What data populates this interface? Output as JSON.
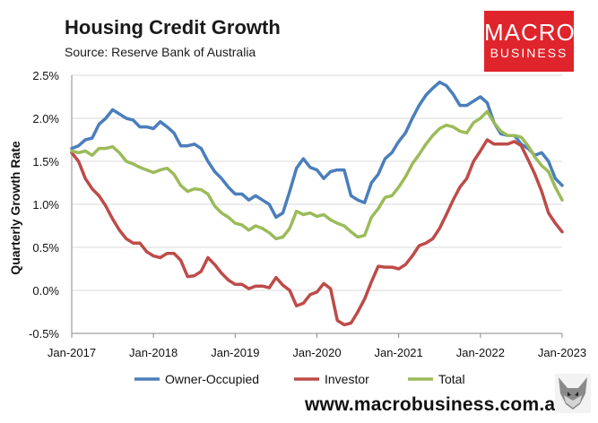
{
  "title": "Housing Credit Growth",
  "subtitle": "Source: Reserve Bank of Australia",
  "brand": {
    "line1": "MACRO",
    "line2": "BUSINESS",
    "color": "#e0242b"
  },
  "website": "www.macrobusiness.com.au",
  "logo_icon": "fox-face-icon",
  "chart_data": {
    "type": "line",
    "title": "Housing Credit Growth",
    "ylabel": "Quarterly Growth Rate",
    "xlabel": "",
    "ylim": [
      -0.5,
      2.5
    ],
    "yticks": [
      "-0.5%",
      "0.0%",
      "0.5%",
      "1.0%",
      "1.5%",
      "2.0%",
      "2.5%"
    ],
    "ytick_values": [
      -0.5,
      0.0,
      0.5,
      1.0,
      1.5,
      2.0,
      2.5
    ],
    "xlim": [
      0,
      72
    ],
    "xticks": [
      "Jan-2017",
      "Jan-2018",
      "Jan-2019",
      "Jan-2020",
      "Jan-2021",
      "Jan-2022",
      "Jan-2023"
    ],
    "xtick_months": [
      0,
      12,
      24,
      36,
      48,
      60,
      72
    ],
    "legend": "bottom",
    "x_unit": "months since Jan-2017",
    "series": [
      {
        "name": "Owner-Occupied",
        "color": "#4a7ebb",
        "points": [
          [
            0,
            1.65
          ],
          [
            1,
            1.68
          ],
          [
            2,
            1.75
          ],
          [
            3,
            1.77
          ],
          [
            4,
            1.93
          ],
          [
            5,
            2.0
          ],
          [
            6,
            2.1
          ],
          [
            7,
            2.05
          ],
          [
            8,
            2.0
          ],
          [
            9,
            1.98
          ],
          [
            10,
            1.9
          ],
          [
            11,
            1.9
          ],
          [
            12,
            1.88
          ],
          [
            13,
            1.96
          ],
          [
            14,
            1.9
          ],
          [
            15,
            1.83
          ],
          [
            16,
            1.68
          ],
          [
            17,
            1.68
          ],
          [
            18,
            1.7
          ],
          [
            19,
            1.65
          ],
          [
            20,
            1.5
          ],
          [
            21,
            1.38
          ],
          [
            22,
            1.3
          ],
          [
            23,
            1.2
          ],
          [
            24,
            1.12
          ],
          [
            25,
            1.12
          ],
          [
            26,
            1.05
          ],
          [
            27,
            1.1
          ],
          [
            28,
            1.05
          ],
          [
            29,
            1.0
          ],
          [
            30,
            0.85
          ],
          [
            31,
            0.9
          ],
          [
            32,
            1.15
          ],
          [
            33,
            1.42
          ],
          [
            34,
            1.53
          ],
          [
            35,
            1.43
          ],
          [
            36,
            1.4
          ],
          [
            37,
            1.3
          ],
          [
            38,
            1.38
          ],
          [
            39,
            1.4
          ],
          [
            40,
            1.4
          ],
          [
            41,
            1.1
          ],
          [
            42,
            1.05
          ],
          [
            43,
            1.02
          ],
          [
            44,
            1.25
          ],
          [
            45,
            1.35
          ],
          [
            46,
            1.53
          ],
          [
            47,
            1.6
          ],
          [
            48,
            1.73
          ],
          [
            49,
            1.83
          ],
          [
            50,
            2.0
          ],
          [
            51,
            2.15
          ],
          [
            52,
            2.27
          ],
          [
            53,
            2.35
          ],
          [
            54,
            2.42
          ],
          [
            55,
            2.38
          ],
          [
            56,
            2.28
          ],
          [
            57,
            2.15
          ],
          [
            58,
            2.15
          ],
          [
            59,
            2.2
          ],
          [
            60,
            2.25
          ],
          [
            61,
            2.18
          ],
          [
            62,
            1.95
          ],
          [
            63,
            1.82
          ],
          [
            64,
            1.8
          ],
          [
            65,
            1.8
          ],
          [
            66,
            1.7
          ],
          [
            67,
            1.65
          ],
          [
            68,
            1.57
          ],
          [
            69,
            1.6
          ],
          [
            70,
            1.5
          ],
          [
            71,
            1.3
          ],
          [
            72,
            1.22
          ]
        ]
      },
      {
        "name": "Investor",
        "color": "#be4b48",
        "points": [
          [
            0,
            1.6
          ],
          [
            1,
            1.5
          ],
          [
            2,
            1.3
          ],
          [
            3,
            1.18
          ],
          [
            4,
            1.1
          ],
          [
            5,
            0.98
          ],
          [
            6,
            0.83
          ],
          [
            7,
            0.7
          ],
          [
            8,
            0.6
          ],
          [
            9,
            0.55
          ],
          [
            10,
            0.55
          ],
          [
            11,
            0.45
          ],
          [
            12,
            0.4
          ],
          [
            13,
            0.38
          ],
          [
            14,
            0.43
          ],
          [
            15,
            0.43
          ],
          [
            16,
            0.35
          ],
          [
            17,
            0.16
          ],
          [
            18,
            0.17
          ],
          [
            19,
            0.22
          ],
          [
            20,
            0.38
          ],
          [
            21,
            0.3
          ],
          [
            22,
            0.2
          ],
          [
            23,
            0.12
          ],
          [
            24,
            0.07
          ],
          [
            25,
            0.07
          ],
          [
            26,
            0.02
          ],
          [
            27,
            0.05
          ],
          [
            28,
            0.05
          ],
          [
            29,
            0.03
          ],
          [
            30,
            0.15
          ],
          [
            31,
            0.06
          ],
          [
            32,
            0.0
          ],
          [
            33,
            -0.18
          ],
          [
            34,
            -0.15
          ],
          [
            35,
            -0.05
          ],
          [
            36,
            -0.02
          ],
          [
            37,
            0.08
          ],
          [
            38,
            0.02
          ],
          [
            39,
            -0.35
          ],
          [
            40,
            -0.4
          ],
          [
            41,
            -0.38
          ],
          [
            42,
            -0.25
          ],
          [
            43,
            -0.1
          ],
          [
            44,
            0.1
          ],
          [
            45,
            0.28
          ],
          [
            46,
            0.27
          ],
          [
            47,
            0.27
          ],
          [
            48,
            0.25
          ],
          [
            49,
            0.3
          ],
          [
            50,
            0.4
          ],
          [
            51,
            0.52
          ],
          [
            52,
            0.55
          ],
          [
            53,
            0.6
          ],
          [
            54,
            0.72
          ],
          [
            55,
            0.88
          ],
          [
            56,
            1.05
          ],
          [
            57,
            1.2
          ],
          [
            58,
            1.3
          ],
          [
            59,
            1.5
          ],
          [
            60,
            1.62
          ],
          [
            61,
            1.75
          ],
          [
            62,
            1.7
          ],
          [
            63,
            1.7
          ],
          [
            64,
            1.7
          ],
          [
            65,
            1.73
          ],
          [
            66,
            1.68
          ],
          [
            67,
            1.52
          ],
          [
            68,
            1.35
          ],
          [
            69,
            1.15
          ],
          [
            70,
            0.9
          ],
          [
            71,
            0.78
          ],
          [
            72,
            0.68
          ]
        ]
      },
      {
        "name": "Total",
        "color": "#9bbb59",
        "points": [
          [
            0,
            1.62
          ],
          [
            1,
            1.6
          ],
          [
            2,
            1.62
          ],
          [
            3,
            1.57
          ],
          [
            4,
            1.65
          ],
          [
            5,
            1.65
          ],
          [
            6,
            1.67
          ],
          [
            7,
            1.6
          ],
          [
            8,
            1.5
          ],
          [
            9,
            1.47
          ],
          [
            10,
            1.43
          ],
          [
            11,
            1.4
          ],
          [
            12,
            1.37
          ],
          [
            13,
            1.4
          ],
          [
            14,
            1.42
          ],
          [
            15,
            1.35
          ],
          [
            16,
            1.22
          ],
          [
            17,
            1.15
          ],
          [
            18,
            1.18
          ],
          [
            19,
            1.17
          ],
          [
            20,
            1.12
          ],
          [
            21,
            0.98
          ],
          [
            22,
            0.9
          ],
          [
            23,
            0.85
          ],
          [
            24,
            0.78
          ],
          [
            25,
            0.76
          ],
          [
            26,
            0.7
          ],
          [
            27,
            0.75
          ],
          [
            28,
            0.72
          ],
          [
            29,
            0.67
          ],
          [
            30,
            0.6
          ],
          [
            31,
            0.62
          ],
          [
            32,
            0.72
          ],
          [
            33,
            0.92
          ],
          [
            34,
            0.88
          ],
          [
            35,
            0.9
          ],
          [
            36,
            0.86
          ],
          [
            37,
            0.88
          ],
          [
            38,
            0.82
          ],
          [
            39,
            0.78
          ],
          [
            40,
            0.75
          ],
          [
            41,
            0.68
          ],
          [
            42,
            0.62
          ],
          [
            43,
            0.64
          ],
          [
            44,
            0.85
          ],
          [
            45,
            0.95
          ],
          [
            46,
            1.08
          ],
          [
            47,
            1.1
          ],
          [
            48,
            1.2
          ],
          [
            49,
            1.32
          ],
          [
            50,
            1.47
          ],
          [
            51,
            1.58
          ],
          [
            52,
            1.7
          ],
          [
            53,
            1.8
          ],
          [
            54,
            1.88
          ],
          [
            55,
            1.92
          ],
          [
            56,
            1.9
          ],
          [
            57,
            1.85
          ],
          [
            58,
            1.83
          ],
          [
            59,
            1.95
          ],
          [
            60,
            2.0
          ],
          [
            61,
            2.08
          ],
          [
            62,
            1.95
          ],
          [
            63,
            1.85
          ],
          [
            64,
            1.8
          ],
          [
            65,
            1.8
          ],
          [
            66,
            1.78
          ],
          [
            67,
            1.68
          ],
          [
            68,
            1.55
          ],
          [
            69,
            1.45
          ],
          [
            70,
            1.38
          ],
          [
            71,
            1.2
          ],
          [
            72,
            1.05
          ]
        ]
      }
    ]
  }
}
